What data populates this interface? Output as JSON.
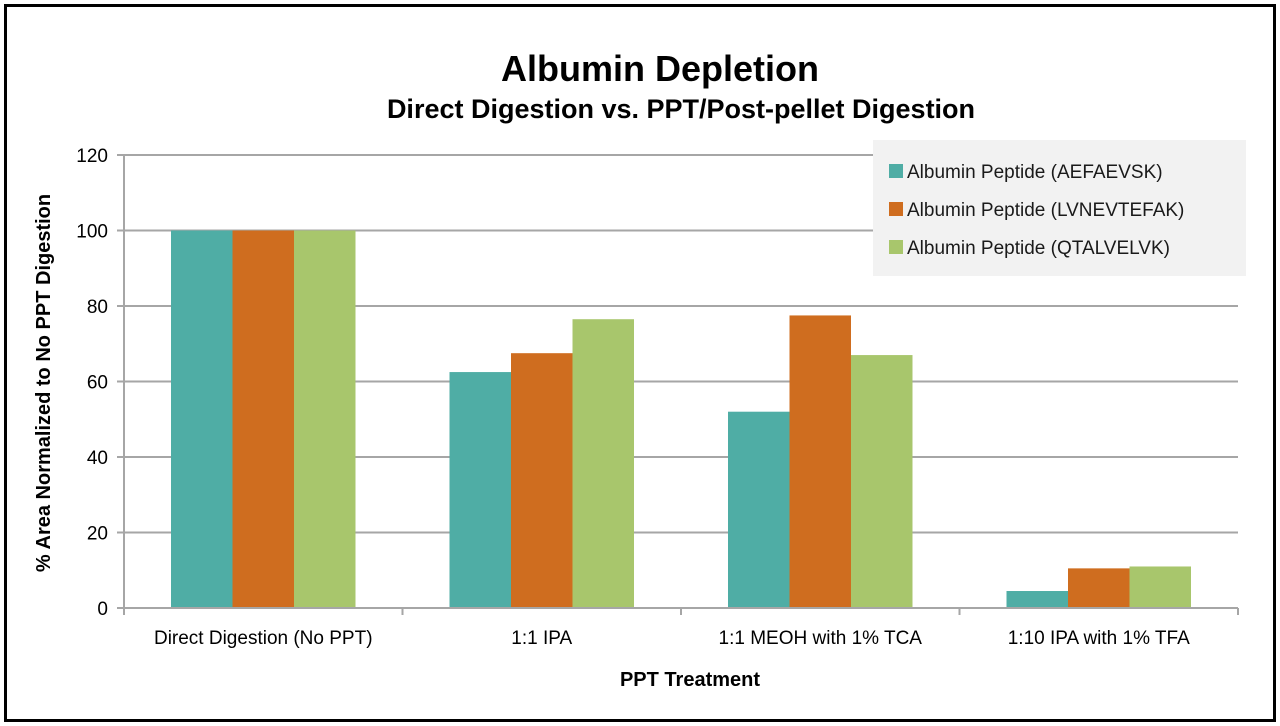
{
  "chart_data": {
    "type": "bar",
    "title": "Albumin Depletion",
    "subtitle": "Direct Digestion vs. PPT/Post-pellet Digestion",
    "xlabel": "PPT Treatment",
    "ylabel": "% Area Normalized to No PPT Digestion",
    "ylim": [
      0,
      120
    ],
    "yticks": [
      0,
      20,
      40,
      60,
      80,
      100,
      120
    ],
    "grid": true,
    "legend_position": "top-right",
    "categories": [
      "Direct Digestion (No PPT)",
      "1:1 IPA",
      "1:1 MEOH with 1% TCA",
      "1:10 IPA with 1% TFA"
    ],
    "series": [
      {
        "name": "Albumin Peptide (AEFAEVSK)",
        "color": "#4fada5",
        "values": [
          100,
          62.5,
          52,
          4.5
        ]
      },
      {
        "name": "Albumin Peptide (LVNEVTEFAK)",
        "color": "#cf6d1f",
        "values": [
          100,
          67.5,
          77.5,
          10.5
        ]
      },
      {
        "name": "Albumin Peptide (QTALVELVK)",
        "color": "#a8c66c",
        "values": [
          100,
          76.5,
          67,
          11
        ]
      }
    ]
  }
}
